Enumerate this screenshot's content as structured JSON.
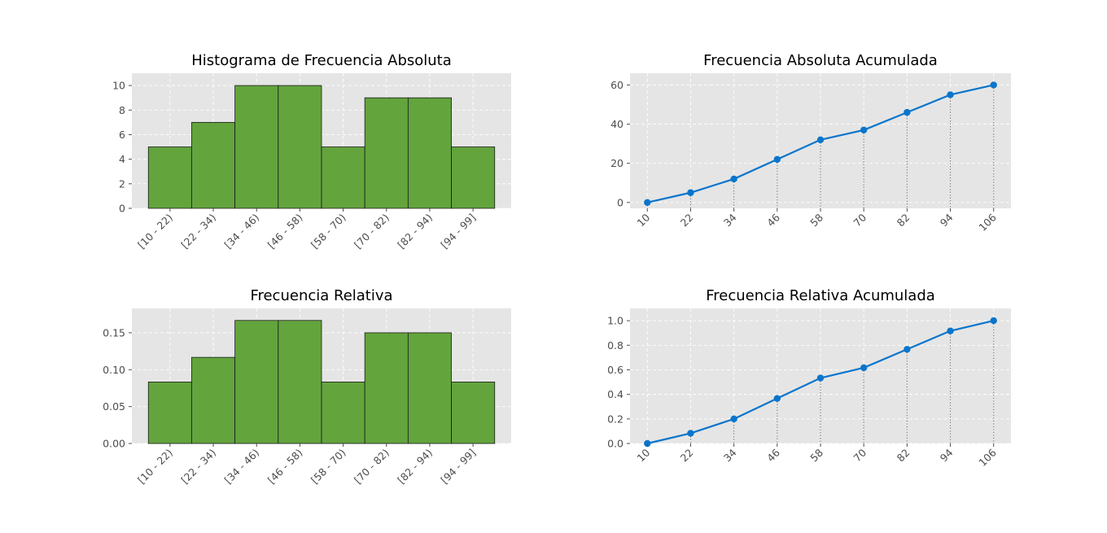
{
  "chart_data": [
    {
      "type": "bar",
      "title": "Histograma de Frecuencia Absoluta",
      "xlabel": "",
      "ylabel": "",
      "categories": [
        "[10 - 22)",
        "[22 - 34)",
        "[34 - 46)",
        "[46 - 58)",
        "[58 - 70)",
        "[70 - 82)",
        "[82 - 94)",
        "[94 - 99]"
      ],
      "values": [
        5,
        7,
        10,
        10,
        5,
        9,
        9,
        5
      ],
      "ylim": [
        0,
        11
      ],
      "yticks": [
        0,
        2,
        4,
        6,
        8,
        10
      ],
      "ytick_labels": [
        "0",
        "2",
        "4",
        "6",
        "8",
        "10"
      ],
      "grid": true,
      "bar_color": "#63a43d"
    },
    {
      "type": "line",
      "title": "Frecuencia Absoluta Acumulada",
      "xlabel": "",
      "ylabel": "",
      "x": [
        10,
        22,
        34,
        46,
        58,
        70,
        82,
        94,
        106
      ],
      "x_labels": [
        "10",
        "22",
        "34",
        "46",
        "58",
        "70",
        "82",
        "94",
        "106"
      ],
      "values": [
        0,
        5,
        12,
        22,
        32,
        37,
        46,
        55,
        60
      ],
      "ylim": [
        -3,
        66
      ],
      "yticks": [
        0,
        20,
        40,
        60
      ],
      "ytick_labels": [
        "0",
        "20",
        "40",
        "60"
      ],
      "grid": true,
      "line_color": "#0a75cc"
    },
    {
      "type": "bar",
      "title": "Frecuencia Relativa",
      "xlabel": "",
      "ylabel": "",
      "categories": [
        "[10 - 22)",
        "[22 - 34)",
        "[34 - 46)",
        "[46 - 58)",
        "[58 - 70)",
        "[70 - 82)",
        "[82 - 94)",
        "[94 - 99]"
      ],
      "values": [
        0.0833,
        0.1167,
        0.1667,
        0.1667,
        0.0833,
        0.15,
        0.15,
        0.0833
      ],
      "ylim": [
        0,
        0.183
      ],
      "yticks": [
        0,
        0.05,
        0.1,
        0.15
      ],
      "ytick_labels": [
        "0.00",
        "0.05",
        "0.10",
        "0.15"
      ],
      "grid": true,
      "bar_color": "#63a43d"
    },
    {
      "type": "line",
      "title": "Frecuencia Relativa Acumulada",
      "xlabel": "",
      "ylabel": "",
      "x": [
        10,
        22,
        34,
        46,
        58,
        70,
        82,
        94,
        106
      ],
      "x_labels": [
        "10",
        "22",
        "34",
        "46",
        "58",
        "70",
        "82",
        "94",
        "106"
      ],
      "values": [
        0,
        0.0833,
        0.2,
        0.3667,
        0.5333,
        0.6167,
        0.7667,
        0.9167,
        1.0
      ],
      "ylim": [
        0,
        1.1
      ],
      "yticks": [
        0,
        0.2,
        0.4,
        0.6,
        0.8,
        1.0
      ],
      "ytick_labels": [
        "0.0",
        "0.2",
        "0.4",
        "0.6",
        "0.8",
        "1.0"
      ],
      "grid": true,
      "line_color": "#0a75cc"
    }
  ]
}
